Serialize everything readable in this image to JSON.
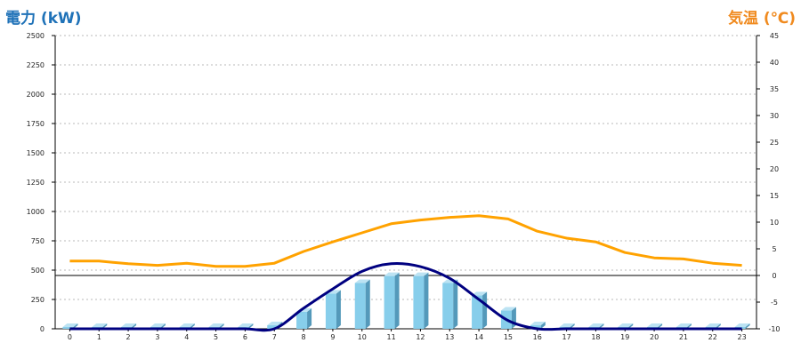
{
  "chart_data": {
    "type": "bar",
    "left_axis": {
      "label": "電力 (kW)",
      "range": [
        0,
        2500
      ],
      "ticks": [
        "0",
        "250",
        "500",
        "750",
        "1000",
        "1250",
        "1500",
        "1750",
        "2000",
        "2250",
        "2500"
      ]
    },
    "right_axis": {
      "label": "気温 (℃)",
      "range": [
        -10,
        45
      ],
      "ticks": [
        "-10",
        "-5",
        "0",
        "5",
        "10",
        "15",
        "20",
        "25",
        "30",
        "35",
        "40",
        "45"
      ]
    },
    "categories": [
      "0",
      "1",
      "2",
      "3",
      "4",
      "5",
      "6",
      "7",
      "8",
      "9",
      "10",
      "11",
      "12",
      "13",
      "14",
      "15",
      "16",
      "17",
      "18",
      "19",
      "20",
      "21",
      "22",
      "23"
    ],
    "series": [
      {
        "kind": "bar",
        "axis": "left",
        "values": [
          15,
          15,
          15,
          15,
          15,
          15,
          15,
          30,
          145,
          300,
          390,
          450,
          450,
          390,
          285,
          155,
          30,
          15,
          15,
          15,
          15,
          15,
          15,
          15
        ]
      },
      {
        "kind": "line",
        "axis": "left",
        "values": [
          0,
          0,
          0,
          0,
          0,
          0,
          0,
          0,
          175,
          340,
          490,
          555,
          530,
          430,
          250,
          70,
          0,
          0,
          0,
          0,
          0,
          0,
          0,
          0
        ]
      },
      {
        "kind": "line",
        "axis": "right",
        "values": [
          2.7,
          2.7,
          2.2,
          1.9,
          2.3,
          1.7,
          1.7,
          2.3,
          4.5,
          6.3,
          8.0,
          9.7,
          10.4,
          10.9,
          11.2,
          10.6,
          8.3,
          7.0,
          6.3,
          4.3,
          3.3,
          3.1,
          2.3,
          1.9
        ]
      }
    ],
    "reference_line": {
      "axis": "right",
      "value": 0
    },
    "grid": true,
    "colors": {
      "bar_front": "#87CEEB",
      "bar_side": "#5499BA",
      "bar_top": "#BCE3F3",
      "power_line": "#000080",
      "temp_line": "#FFA200",
      "left_title": "#1F72B8",
      "right_title": "#F08A1E",
      "grid": "#B8B8B8",
      "axis": "#000000"
    }
  }
}
